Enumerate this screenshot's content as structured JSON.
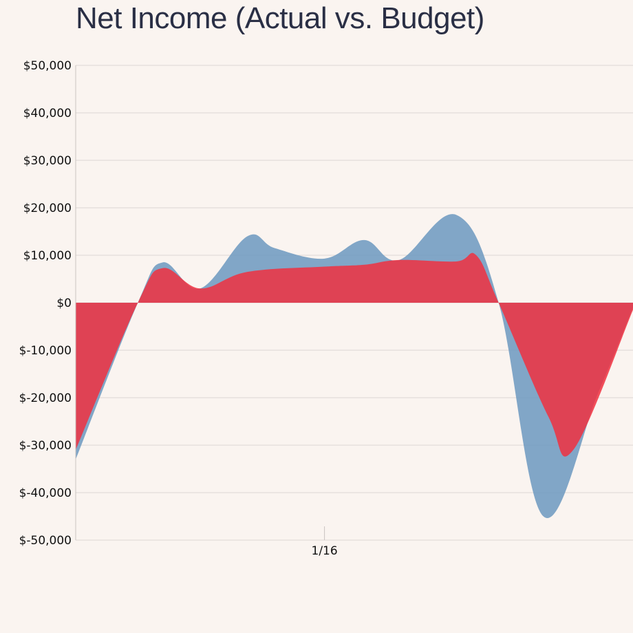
{
  "chart_data": {
    "type": "area",
    "title": "Net Income (Actual vs. Budget)",
    "xlabel": "",
    "ylabel": "",
    "ylim": [
      -50000,
      50000
    ],
    "yticks": [
      50000,
      40000,
      30000,
      20000,
      10000,
      0,
      -10000,
      -20000,
      -30000,
      -40000,
      -50000
    ],
    "ytick_labels": [
      "$50,000",
      "$40,000",
      "$30,000",
      "$20,000",
      "$10,000",
      "$0",
      "$-10,000",
      "$-20,000",
      "$-30,000",
      "$-40,000",
      "$-50,000"
    ],
    "xticks": [
      {
        "x": 16,
        "label": "1/16"
      }
    ],
    "xlim": [
      11,
      22.2
    ],
    "grid": true,
    "legend": "none",
    "series": [
      {
        "color": "#6f9bc0",
        "x": [
          11,
          12.25,
          12.75,
          13.5,
          14.45,
          15,
          16,
          16.8,
          17.5,
          18.65,
          19.5,
          20.4,
          21.5,
          22.2
        ],
        "values": [
          -33000,
          0,
          8500,
          3000,
          14000,
          11500,
          9300,
          13200,
          9000,
          18500,
          0,
          -45000,
          -19000,
          -1000
        ]
      },
      {
        "color": "#f0303f",
        "x": [
          11,
          12.25,
          12.75,
          13.5,
          14.45,
          16,
          16.8,
          17.5,
          18.65,
          19.05,
          19.5,
          20.5,
          21,
          22.2
        ],
        "values": [
          -31000,
          0,
          7300,
          3000,
          6500,
          7600,
          8000,
          9000,
          8700,
          10000,
          0,
          -24000,
          -31000,
          -1500
        ]
      }
    ]
  }
}
